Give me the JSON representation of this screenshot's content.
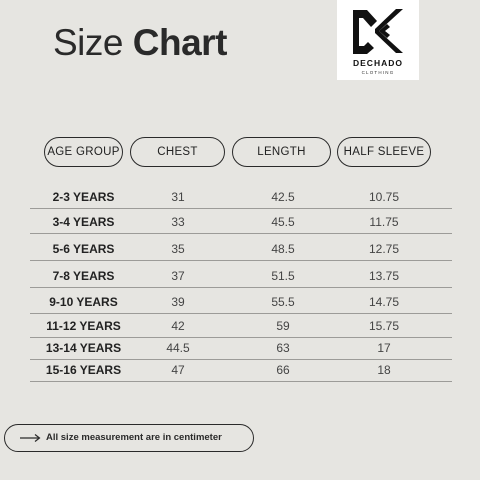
{
  "title": {
    "light": "Size",
    "bold": "Chart"
  },
  "logo": {
    "icon": "dechado-dk-monogram-icon",
    "brand": "DECHADO",
    "tagline": "CLOTHING"
  },
  "columns": [
    "AGE GROUP",
    "CHEST",
    "LENGTH",
    "HALF SLEEVE"
  ],
  "rows": [
    {
      "age": "2-3 YEARS",
      "chest": "31",
      "length": "42.5",
      "half_sleeve": "10.75"
    },
    {
      "age": "3-4 YEARS",
      "chest": "33",
      "length": "45.5",
      "half_sleeve": "11.75"
    },
    {
      "age": "5-6 YEARS",
      "chest": "35",
      "length": "48.5",
      "half_sleeve": "12.75"
    },
    {
      "age": "7-8 YEARS",
      "chest": "37",
      "length": "51.5",
      "half_sleeve": "13.75"
    },
    {
      "age": "9-10 YEARS",
      "chest": "39",
      "length": "55.5",
      "half_sleeve": "14.75"
    },
    {
      "age": "11-12 YEARS",
      "chest": "42",
      "length": "59",
      "half_sleeve": "15.75"
    },
    {
      "age": "13-14 YEARS",
      "chest": "44.5",
      "length": "63",
      "half_sleeve": "17"
    },
    {
      "age": "15-16 YEARS",
      "chest": "47",
      "length": "66",
      "half_sleeve": "18"
    }
  ],
  "note": {
    "icon": "arrow-right-icon",
    "text": "All size measurement are in centimeter"
  },
  "colors": {
    "background": "#e6e5e1",
    "text": "#222222",
    "rule": "#9c9b98",
    "logo_bg": "#ffffff"
  }
}
